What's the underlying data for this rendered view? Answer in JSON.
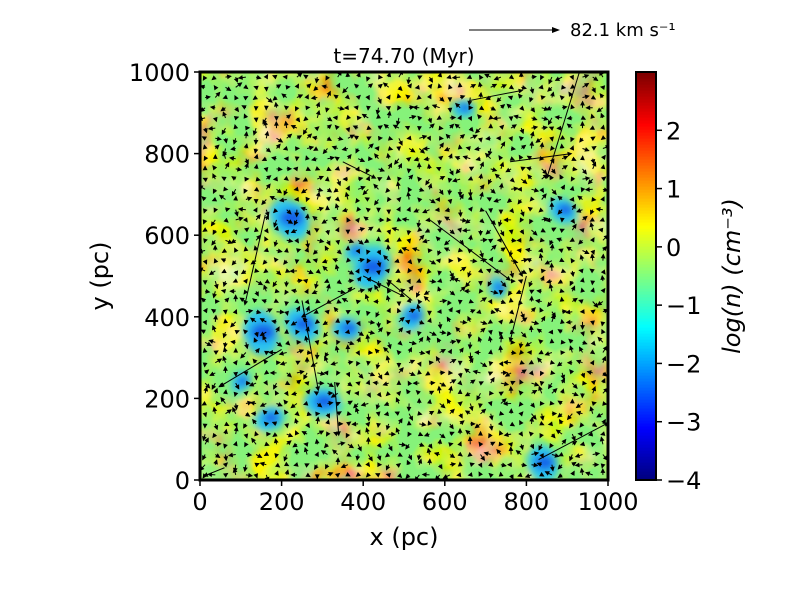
{
  "chart_data": {
    "type": "heatmap",
    "title": "t=74.70 (Myr)",
    "xlabel": "x (pc)",
    "ylabel": "y (pc)",
    "xlim": [
      0,
      1000
    ],
    "ylim": [
      0,
      1000
    ],
    "x_ticks": [
      0,
      200,
      400,
      600,
      800,
      1000
    ],
    "y_ticks": [
      0,
      200,
      400,
      600,
      800,
      1000
    ],
    "x_tick_labels": [
      "0",
      "200",
      "400",
      "600",
      "800",
      "1000"
    ],
    "y_tick_labels": [
      "0",
      "200",
      "400",
      "600",
      "800",
      "1000"
    ],
    "colorbar": {
      "label": "log(n) (cm⁻³)",
      "colormap": "jet",
      "range": [
        -4,
        3
      ],
      "ticks": [
        -4,
        -3,
        -2,
        -1,
        0,
        1,
        2
      ],
      "tick_labels": [
        "−4",
        "−3",
        "−2",
        "−1",
        "0",
        "1",
        "2"
      ]
    },
    "quiver": {
      "reference_speed": 82.1,
      "reference_label": "82.1 km s⁻¹",
      "grid_spacing": 25
    },
    "low_density_clumps": [
      {
        "x": 645,
        "y": 910
      },
      {
        "x": 890,
        "y": 660
      },
      {
        "x": 840,
        "y": 40
      },
      {
        "x": 420,
        "y": 520
      },
      {
        "x": 380,
        "y": 560
      },
      {
        "x": 360,
        "y": 370
      },
      {
        "x": 250,
        "y": 380
      },
      {
        "x": 150,
        "y": 360
      },
      {
        "x": 100,
        "y": 240
      },
      {
        "x": 170,
        "y": 150
      },
      {
        "x": 300,
        "y": 190
      },
      {
        "x": 220,
        "y": 640
      },
      {
        "x": 730,
        "y": 470
      },
      {
        "x": 520,
        "y": 400
      }
    ],
    "long_velocity_vectors": [
      {
        "x": 660,
        "y": 930,
        "u": 130,
        "v": 25
      },
      {
        "x": 930,
        "y": 1000,
        "u": -80,
        "v": -260
      },
      {
        "x": 760,
        "y": 780,
        "u": 150,
        "v": 20
      },
      {
        "x": 560,
        "y": 640,
        "u": 200,
        "v": -150
      },
      {
        "x": 700,
        "y": 660,
        "u": 90,
        "v": -160
      },
      {
        "x": 800,
        "y": 500,
        "u": -40,
        "v": -160
      },
      {
        "x": 160,
        "y": 650,
        "u": -50,
        "v": -220
      },
      {
        "x": 250,
        "y": 440,
        "u": 40,
        "v": -220
      },
      {
        "x": 380,
        "y": 470,
        "u": -130,
        "v": -70
      },
      {
        "x": 330,
        "y": 240,
        "u": 10,
        "v": -130
      },
      {
        "x": 400,
        "y": 500,
        "u": 100,
        "v": -50
      },
      {
        "x": 200,
        "y": 320,
        "u": -150,
        "v": -90
      },
      {
        "x": 830,
        "y": 50,
        "u": 170,
        "v": 90
      },
      {
        "x": 520,
        "y": 440,
        "u": -60,
        "v": 50
      },
      {
        "x": 60,
        "y": 30,
        "u": -50,
        "v": -20
      },
      {
        "x": 350,
        "y": 780,
        "u": 80,
        "v": -40
      }
    ]
  }
}
